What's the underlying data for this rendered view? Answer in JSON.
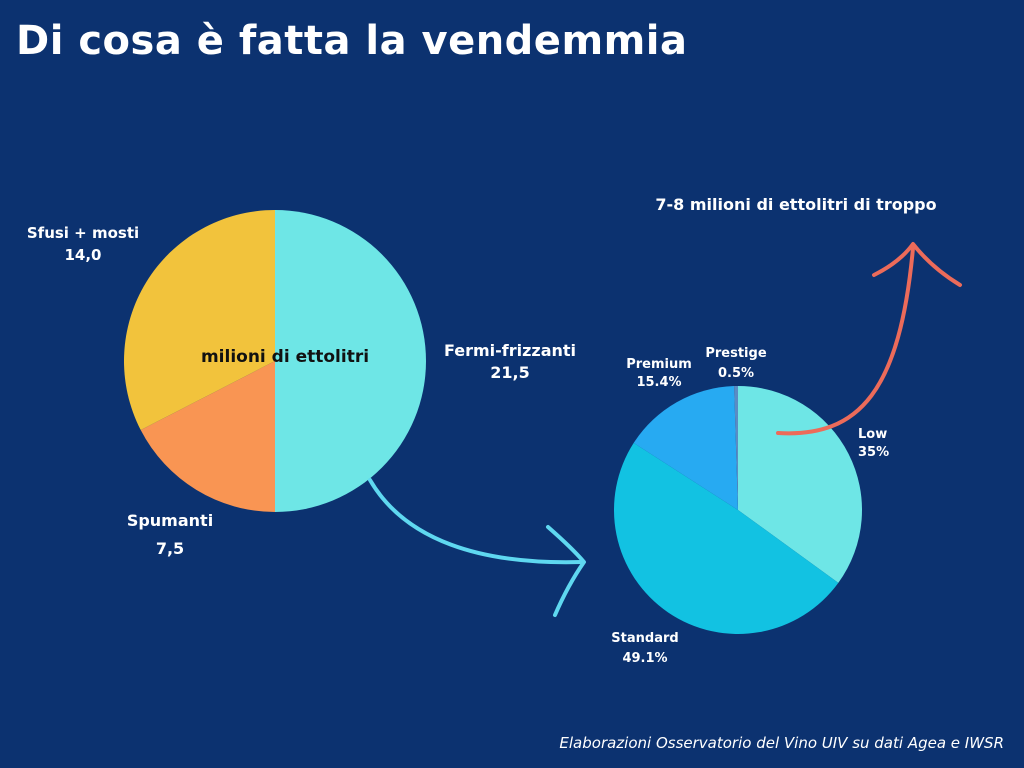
{
  "title": "Di cosa è fatta la vendemmia",
  "source": "Elaborazioni Osservatorio del Vino UIV su dati Agea e IWSR",
  "annotation": "7-8 milioni di ettolitri di troppo",
  "chart_data": [
    {
      "type": "pie",
      "center_label": "milioni di ettolitri",
      "unit": "milioni di ettolitri",
      "slices": [
        {
          "name": "Fermi-frizzanti",
          "value": 21.5,
          "value_label": "21,5",
          "color": "#6ee6e6"
        },
        {
          "name": "Spumanti",
          "value": 7.5,
          "value_label": "7,5",
          "color": "#f99553"
        },
        {
          "name": "Sfusi + mosti",
          "value": 14.0,
          "value_label": "14,0",
          "color": "#f2c33c"
        }
      ]
    },
    {
      "type": "pie",
      "slices": [
        {
          "name": "Low",
          "value": 35,
          "value_label": "35%",
          "color": "#6ee6e6"
        },
        {
          "name": "Standard",
          "value": 49.1,
          "value_label": "49.1%",
          "color": "#12c2e2"
        },
        {
          "name": "Premium",
          "value": 15.4,
          "value_label": "15.4%",
          "color": "#27aaf2"
        },
        {
          "name": "Prestige",
          "value": 0.5,
          "value_label": "0.5%",
          "color": "#5a8cc4"
        }
      ]
    }
  ]
}
